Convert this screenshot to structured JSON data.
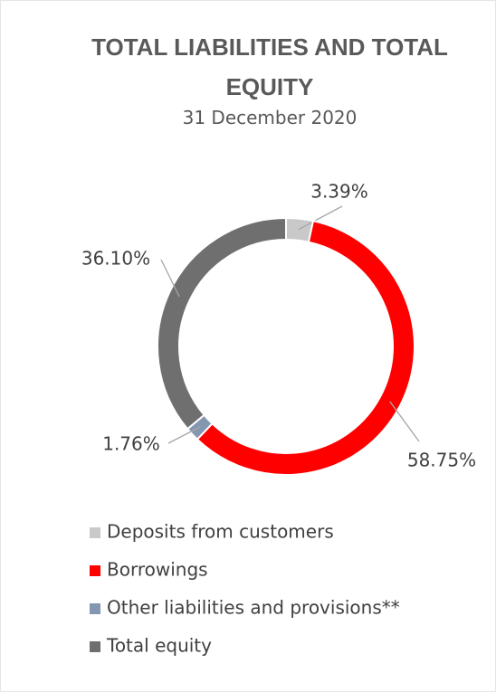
{
  "chart_data": {
    "type": "donut",
    "title": "TOTAL LIABILITIES AND TOTAL EQUITY",
    "subtitle": "31 December 2020",
    "categories": [
      "Deposits from customers",
      "Borrowings",
      "Other liabilities and provisions**",
      "Total equity"
    ],
    "values": [
      3.39,
      58.75,
      1.76,
      36.1
    ],
    "value_labels": [
      "3.39%",
      "58.75%",
      "1.76%",
      "36.10%"
    ],
    "colors": [
      "#c9c9c9",
      "#ff0000",
      "#8497b0",
      "#6f6f6f"
    ],
    "legend": "bottom"
  }
}
